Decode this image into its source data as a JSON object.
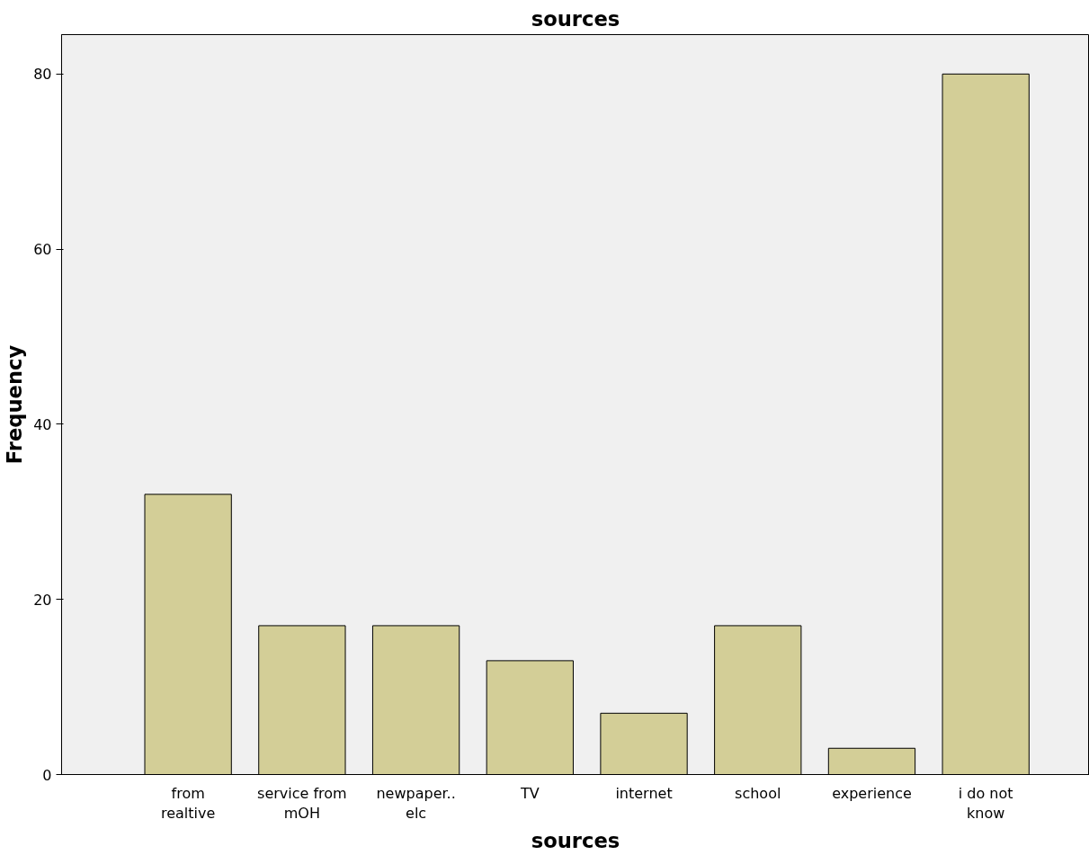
{
  "chart_data": {
    "type": "bar",
    "title": "sources",
    "xlabel": "sources",
    "ylabel": "Frequency",
    "categories": [
      "from\nrealtive",
      "service from\nmOH",
      "newpaper..\nelc",
      "TV",
      "internet",
      "school",
      "experience",
      "i do not\nknow"
    ],
    "values": [
      32,
      17,
      17,
      13,
      7,
      17,
      3,
      80
    ],
    "color": "#d3ce97",
    "ylim": [
      0,
      84.5
    ],
    "yticks": [
      0,
      20,
      40,
      60,
      80
    ],
    "grid": false
  }
}
